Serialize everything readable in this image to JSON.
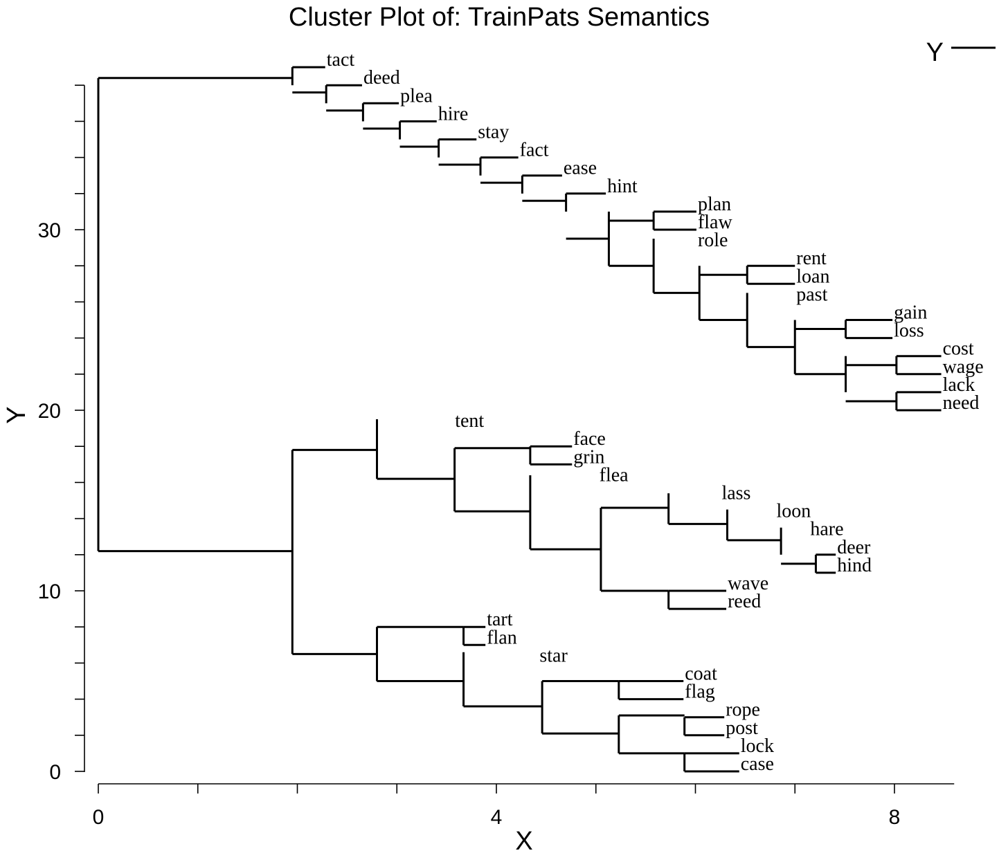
{
  "chart_data": {
    "type": "dendrogram",
    "title": "Cluster Plot of: TrainPats Semantics",
    "xlabel": "X",
    "ylabel": "Y",
    "xlim": [
      0,
      8.6
    ],
    "ylim": [
      0,
      38
    ],
    "x_ticks": [
      0,
      4,
      8
    ],
    "y_ticks": [
      0,
      10,
      20,
      30
    ],
    "x_minor_step": 1,
    "y_minor_step": 2,
    "legend": {
      "label": "Y",
      "position": "top-right"
    },
    "leaves": [
      {
        "label": "tact",
        "x": 2.28,
        "y": 39.0
      },
      {
        "label": "deed",
        "x": 2.65,
        "y": 38.0
      },
      {
        "label": "plea",
        "x": 3.02,
        "y": 37.0
      },
      {
        "label": "hire",
        "x": 3.4,
        "y": 36.0
      },
      {
        "label": "stay",
        "x": 3.8,
        "y": 35.0
      },
      {
        "label": "fact",
        "x": 4.22,
        "y": 34.0
      },
      {
        "label": "ease",
        "x": 4.66,
        "y": 33.0
      },
      {
        "label": "hint",
        "x": 5.1,
        "y": 32.0
      },
      {
        "label": "plan",
        "x": 6.01,
        "y": 31.0
      },
      {
        "label": "flaw",
        "x": 6.01,
        "y": 30.0
      },
      {
        "label": "role",
        "x": 6.01,
        "y": 29.0
      },
      {
        "label": "rent",
        "x": 7.0,
        "y": 28.0
      },
      {
        "label": "loan",
        "x": 7.0,
        "y": 27.0
      },
      {
        "label": "past",
        "x": 7.0,
        "y": 26.0
      },
      {
        "label": "gain",
        "x": 7.98,
        "y": 25.0
      },
      {
        "label": "loss",
        "x": 7.98,
        "y": 24.0
      },
      {
        "label": "cost",
        "x": 8.47,
        "y": 23.0
      },
      {
        "label": "wage",
        "x": 8.47,
        "y": 22.0
      },
      {
        "label": "lack",
        "x": 8.47,
        "y": 21.0
      },
      {
        "label": "need",
        "x": 8.47,
        "y": 20.0
      },
      {
        "label": "tent",
        "x": 3.57,
        "y": 19.0
      },
      {
        "label": "face",
        "x": 4.76,
        "y": 18.0
      },
      {
        "label": "grin",
        "x": 4.76,
        "y": 17.0
      },
      {
        "label": "flea",
        "x": 5.02,
        "y": 16.0
      },
      {
        "label": "lass",
        "x": 6.25,
        "y": 15.0
      },
      {
        "label": "loon",
        "x": 6.8,
        "y": 14.0
      },
      {
        "label": "hare",
        "x": 7.14,
        "y": 13.0
      },
      {
        "label": "deer",
        "x": 7.41,
        "y": 12.0
      },
      {
        "label": "hind",
        "x": 7.41,
        "y": 11.0
      },
      {
        "label": "wave",
        "x": 6.31,
        "y": 10.0
      },
      {
        "label": "reed",
        "x": 6.31,
        "y": 9.0
      },
      {
        "label": "tart",
        "x": 3.89,
        "y": 8.0
      },
      {
        "label": "flan",
        "x": 3.89,
        "y": 7.0
      },
      {
        "label": "star",
        "x": 4.42,
        "y": 6.0
      },
      {
        "label": "coat",
        "x": 5.88,
        "y": 5.0
      },
      {
        "label": "flag",
        "x": 5.88,
        "y": 4.0
      },
      {
        "label": "rope",
        "x": 6.29,
        "y": 3.0
      },
      {
        "label": "post",
        "x": 6.29,
        "y": 2.0
      },
      {
        "label": "lock",
        "x": 6.44,
        "y": 1.0
      },
      {
        "label": "case",
        "x": 6.44,
        "y": 0.0
      }
    ],
    "merges": [
      {
        "x": 0.0,
        "y_low": 12.2,
        "y_high": 38.4
      },
      {
        "x": 1.95,
        "y_low": 38.0,
        "y_high": 39.0
      },
      {
        "x": 2.29,
        "y_low": 37.0,
        "y_high": 38.0
      },
      {
        "x": 2.66,
        "y_low": 36.0,
        "y_high": 37.0
      },
      {
        "x": 3.03,
        "y_low": 35.0,
        "y_high": 36.0
      },
      {
        "x": 3.42,
        "y_low": 34.0,
        "y_high": 35.0
      },
      {
        "x": 3.84,
        "y_low": 33.0,
        "y_high": 34.0
      },
      {
        "x": 4.26,
        "y_low": 32.0,
        "y_high": 33.0
      },
      {
        "x": 4.7,
        "y_low": 31.0,
        "y_high": 32.0
      },
      {
        "x": 5.13,
        "y_low": 28.0,
        "y_high": 31.0
      },
      {
        "x": 5.58,
        "y_low": 30.0,
        "y_high": 31.0
      },
      {
        "x": 5.58,
        "y_low": 26.5,
        "y_high": 29.5
      },
      {
        "x": 6.04,
        "y_low": 25.0,
        "y_high": 28.0
      },
      {
        "x": 6.52,
        "y_low": 27.0,
        "y_high": 28.0
      },
      {
        "x": 6.52,
        "y_low": 23.5,
        "y_high": 26.5
      },
      {
        "x": 7.0,
        "y_low": 22.0,
        "y_high": 25.0
      },
      {
        "x": 7.51,
        "y_low": 24.0,
        "y_high": 25.0
      },
      {
        "x": 7.51,
        "y_low": 21.0,
        "y_high": 23.0
      },
      {
        "x": 8.02,
        "y_low": 22.0,
        "y_high": 23.0
      },
      {
        "x": 8.02,
        "y_low": 20.0,
        "y_high": 21.0
      },
      {
        "x": 1.95,
        "y_low": 6.5,
        "y_high": 17.8
      },
      {
        "x": 2.8,
        "y_low": 16.2,
        "y_high": 19.5
      },
      {
        "x": 3.58,
        "y_low": 14.4,
        "y_high": 17.9
      },
      {
        "x": 4.34,
        "y_low": 17.0,
        "y_high": 18.0
      },
      {
        "x": 4.34,
        "y_low": 12.3,
        "y_high": 16.4
      },
      {
        "x": 5.05,
        "y_low": 10.0,
        "y_high": 14.6
      },
      {
        "x": 5.73,
        "y_low": 13.7,
        "y_high": 15.4
      },
      {
        "x": 6.32,
        "y_low": 12.8,
        "y_high": 14.5
      },
      {
        "x": 6.86,
        "y_low": 12.0,
        "y_high": 13.5
      },
      {
        "x": 7.21,
        "y_low": 11.0,
        "y_high": 12.0
      },
      {
        "x": 5.73,
        "y_low": 9.0,
        "y_high": 10.0
      },
      {
        "x": 2.8,
        "y_low": 5.0,
        "y_high": 8.0
      },
      {
        "x": 3.67,
        "y_low": 7.0,
        "y_high": 8.0
      },
      {
        "x": 3.67,
        "y_low": 3.6,
        "y_high": 6.6
      },
      {
        "x": 4.46,
        "y_low": 2.1,
        "y_high": 5.0
      },
      {
        "x": 5.23,
        "y_low": 4.0,
        "y_high": 5.0
      },
      {
        "x": 5.23,
        "y_low": 1.0,
        "y_high": 3.1
      },
      {
        "x": 5.89,
        "y_low": 2.0,
        "y_high": 3.0
      },
      {
        "x": 5.89,
        "y_low": 0.0,
        "y_high": 1.0
      }
    ],
    "links": [
      {
        "x1": 0.0,
        "x2": 1.95,
        "y": 38.4
      },
      {
        "x1": 0.0,
        "x2": 1.95,
        "y": 12.2
      },
      {
        "x1": 1.95,
        "x2": 2.29,
        "y": 37.6
      },
      {
        "x1": 2.29,
        "x2": 2.66,
        "y": 36.6
      },
      {
        "x1": 2.66,
        "x2": 3.03,
        "y": 35.6
      },
      {
        "x1": 3.03,
        "x2": 3.42,
        "y": 34.6
      },
      {
        "x1": 3.42,
        "x2": 3.84,
        "y": 33.6
      },
      {
        "x1": 3.84,
        "x2": 4.26,
        "y": 32.6
      },
      {
        "x1": 4.26,
        "x2": 4.7,
        "y": 31.6
      },
      {
        "x1": 4.7,
        "x2": 5.13,
        "y": 29.5
      },
      {
        "x1": 5.13,
        "x2": 5.58,
        "y": 30.5
      },
      {
        "x1": 5.13,
        "x2": 5.58,
        "y": 28.0
      },
      {
        "x1": 5.58,
        "x2": 6.04,
        "y": 26.5
      },
      {
        "x1": 6.04,
        "x2": 6.52,
        "y": 27.5
      },
      {
        "x1": 6.04,
        "x2": 6.52,
        "y": 25.0
      },
      {
        "x1": 6.52,
        "x2": 7.0,
        "y": 23.5
      },
      {
        "x1": 7.0,
        "x2": 7.51,
        "y": 24.5
      },
      {
        "x1": 7.0,
        "x2": 7.51,
        "y": 22.0
      },
      {
        "x1": 7.51,
        "x2": 8.02,
        "y": 22.5
      },
      {
        "x1": 7.51,
        "x2": 8.02,
        "y": 20.5
      },
      {
        "x1": 1.95,
        "x2": 2.8,
        "y": 17.8
      },
      {
        "x1": 1.95,
        "x2": 2.8,
        "y": 6.5
      },
      {
        "x1": 2.8,
        "x2": 3.58,
        "y": 16.2
      },
      {
        "x1": 3.58,
        "x2": 4.34,
        "y": 17.9
      },
      {
        "x1": 3.58,
        "x2": 4.34,
        "y": 14.4
      },
      {
        "x1": 4.34,
        "x2": 5.05,
        "y": 12.3
      },
      {
        "x1": 5.05,
        "x2": 5.73,
        "y": 14.6
      },
      {
        "x1": 5.05,
        "x2": 5.73,
        "y": 10.0
      },
      {
        "x1": 5.73,
        "x2": 6.32,
        "y": 13.7
      },
      {
        "x1": 6.32,
        "x2": 6.86,
        "y": 12.8
      },
      {
        "x1": 6.86,
        "x2": 7.21,
        "y": 11.5
      },
      {
        "x1": 2.8,
        "x2": 3.67,
        "y": 8.0
      },
      {
        "x1": 2.8,
        "x2": 3.67,
        "y": 5.0
      },
      {
        "x1": 3.67,
        "x2": 4.46,
        "y": 3.6
      },
      {
        "x1": 4.46,
        "x2": 5.23,
        "y": 5.0
      },
      {
        "x1": 4.46,
        "x2": 5.23,
        "y": 2.1
      },
      {
        "x1": 5.23,
        "x2": 5.89,
        "y": 3.1
      },
      {
        "x1": 5.23,
        "x2": 5.89,
        "y": 1.0
      }
    ]
  }
}
